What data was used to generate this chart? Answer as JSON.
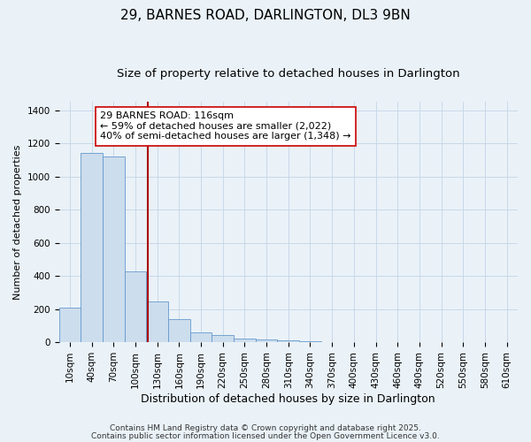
{
  "title": "29, BARNES ROAD, DARLINGTON, DL3 9BN",
  "subtitle": "Size of property relative to detached houses in Darlington",
  "xlabel": "Distribution of detached houses by size in Darlington",
  "ylabel": "Number of detached properties",
  "bar_labels": [
    "10sqm",
    "40sqm",
    "70sqm",
    "100sqm",
    "130sqm",
    "160sqm",
    "190sqm",
    "220sqm",
    "250sqm",
    "280sqm",
    "310sqm",
    "340sqm",
    "370sqm",
    "400sqm",
    "430sqm",
    "460sqm",
    "490sqm",
    "520sqm",
    "550sqm",
    "580sqm",
    "610sqm"
  ],
  "bar_values": [
    210,
    1140,
    1120,
    430,
    245,
    140,
    60,
    45,
    25,
    15,
    10,
    5,
    3,
    2,
    1,
    1,
    0,
    0,
    0,
    0,
    0
  ],
  "bar_color": "#ccdded",
  "bar_edge_color": "#6699cc",
  "vline_x": 3.55,
  "vline_color": "#aa0000",
  "annotation_title": "29 BARNES ROAD: 116sqm",
  "annotation_line1": "← 59% of detached houses are smaller (2,022)",
  "annotation_line2": "40% of semi-detached houses are larger (1,348) →",
  "annotation_box_facecolor": "#ffffff",
  "annotation_box_edgecolor": "#cc0000",
  "ylim": [
    0,
    1450
  ],
  "yticks": [
    0,
    200,
    400,
    600,
    800,
    1000,
    1200,
    1400
  ],
  "grid_color": "#c8d8e8",
  "bg_color": "#eaf2f8",
  "footer1": "Contains HM Land Registry data © Crown copyright and database right 2025.",
  "footer2": "Contains public sector information licensed under the Open Government Licence v3.0.",
  "title_fontsize": 11,
  "subtitle_fontsize": 9.5,
  "xlabel_fontsize": 9,
  "ylabel_fontsize": 8,
  "tick_fontsize": 7.5,
  "annotation_fontsize": 8,
  "footer_fontsize": 6.5
}
